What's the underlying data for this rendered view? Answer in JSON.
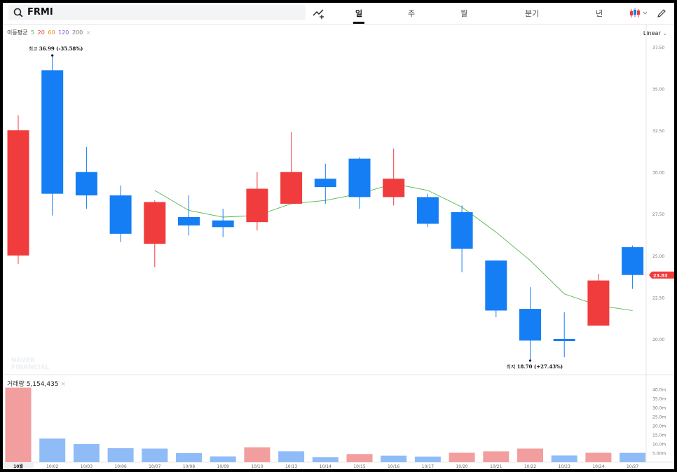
{
  "header": {
    "symbol": "FRMI",
    "tabs": [
      "일",
      "주",
      "월",
      "분기",
      "년"
    ],
    "active_tab": "일"
  },
  "indicator": {
    "label": "이동평균",
    "periods": [
      "5",
      "20",
      "60",
      "120",
      "200"
    ],
    "close_symbol": "×"
  },
  "scale_mode": "Linear",
  "watermark": [
    "NAVER",
    "FINANCIAL"
  ],
  "volume": {
    "label": "거래량",
    "value": "5,154,435",
    "close_symbol": "×"
  },
  "annotations": {
    "high": {
      "label": "최고",
      "value": "36.99",
      "change": "(-35.58%)"
    },
    "low": {
      "label": "최저",
      "value": "18.70",
      "change": "(+27.43%)"
    }
  },
  "last_price_tag": "23.83",
  "colors": {
    "up": "#f03c3c",
    "down": "#157ef4",
    "ma5": "#52b64a",
    "vol_up": "#f29e9e",
    "vol_down": "#8fbcf7"
  },
  "chart_data": [
    {
      "type": "candlestick",
      "x": [
        "10월",
        "10/02",
        "10/03",
        "10/06",
        "10/07",
        "10/08",
        "10/09",
        "10/10",
        "10/13",
        "10/14",
        "10/15",
        "10/16",
        "10/17",
        "10/20",
        "10/21",
        "10/22",
        "10/23",
        "10/24",
        "10/27"
      ],
      "open": [
        25.0,
        36.1,
        30.0,
        28.6,
        25.7,
        27.3,
        27.1,
        27.0,
        28.1,
        29.6,
        30.8,
        28.5,
        28.5,
        27.6,
        24.7,
        21.8,
        20.0,
        20.8,
        25.5
      ],
      "high": [
        33.4,
        36.99,
        31.5,
        29.2,
        28.3,
        28.6,
        27.8,
        30.0,
        32.4,
        30.5,
        30.9,
        31.4,
        28.7,
        28.0,
        24.7,
        23.1,
        21.6,
        23.9,
        25.6
      ],
      "low": [
        24.5,
        27.4,
        27.8,
        25.8,
        24.3,
        26.2,
        26.1,
        26.5,
        28.1,
        28.1,
        27.8,
        28.0,
        26.7,
        24.0,
        21.3,
        18.7,
        18.9,
        20.8,
        23.0
      ],
      "close": [
        32.5,
        28.7,
        28.6,
        26.3,
        28.2,
        26.8,
        26.7,
        29.0,
        30.0,
        29.1,
        28.5,
        29.6,
        26.9,
        25.4,
        21.7,
        19.9,
        19.9,
        23.5,
        23.83
      ],
      "ma5": [
        null,
        null,
        null,
        null,
        28.9,
        27.7,
        27.3,
        27.4,
        28.1,
        28.3,
        28.7,
        29.3,
        28.9,
        27.9,
        26.4,
        24.7,
        22.7,
        22.0,
        21.7
      ],
      "ylim": [
        17.9,
        37.75
      ],
      "yticks": [
        "37.50",
        "35.00",
        "32.50",
        "30.00",
        "27.50",
        "25.00",
        "22.50",
        "20.00"
      ]
    },
    {
      "type": "bar",
      "title": "거래량",
      "categories": [
        "10월",
        "10/02",
        "10/03",
        "10/06",
        "10/07",
        "10/08",
        "10/09",
        "10/10",
        "10/13",
        "10/14",
        "10/15",
        "10/16",
        "10/17",
        "10/20",
        "10/21",
        "10/22",
        "10/23",
        "10/24",
        "10/27"
      ],
      "values_m": [
        41.0,
        13.0,
        10.0,
        7.7,
        7.5,
        5.0,
        3.2,
        8.2,
        6.0,
        2.7,
        4.5,
        3.6,
        3.1,
        5.2,
        6.0,
        7.5,
        3.7,
        5.2,
        5.15
      ],
      "up": [
        true,
        false,
        false,
        false,
        false,
        false,
        false,
        true,
        false,
        false,
        true,
        false,
        false,
        true,
        true,
        true,
        false,
        true,
        false
      ],
      "ylim": [
        0,
        42
      ],
      "yticks": [
        "40.0m",
        "35.0m",
        "30.0m",
        "25.0m",
        "20.0m",
        "15.0m",
        "10.0m",
        "5.00m"
      ]
    }
  ]
}
